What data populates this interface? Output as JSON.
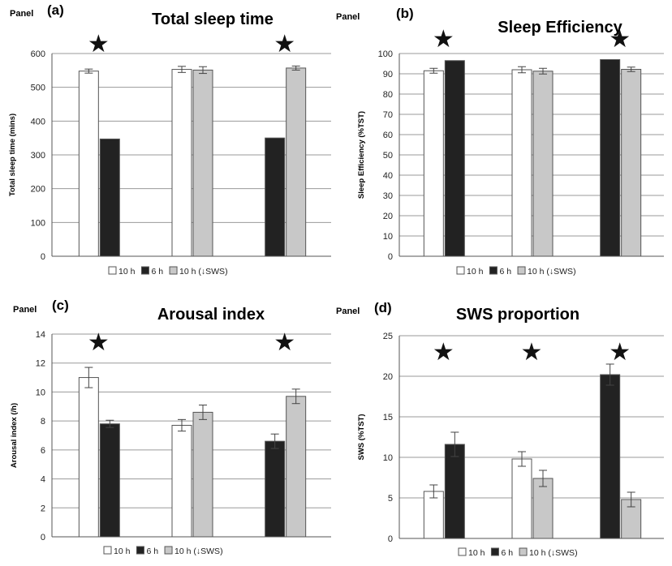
{
  "legend": [
    {
      "label": "10 h",
      "color": "#ffffff"
    },
    {
      "label": "6 h",
      "color": "#222222"
    },
    {
      "label": "10 h (↓SWS)",
      "color": "#c8c8c8"
    }
  ],
  "panel_word": "Panel",
  "star_glyph": "★",
  "colors": {
    "grid": "#9a9a9a",
    "axis": "#555555",
    "bar_stroke": "#555555",
    "errorbar": "#444444"
  },
  "chart_data": [
    {
      "type": "bar",
      "panel": "(a)",
      "title": "Total sleep time",
      "ylabel": "Total sleep time (mins)",
      "ylim": [
        0,
        600
      ],
      "yticks": [
        0,
        100,
        200,
        300,
        400,
        500,
        600
      ],
      "grid": true,
      "legend_position": "bottom",
      "groups": [
        {
          "bars": [
            {
              "series": 0,
              "value": 548,
              "error": 6
            },
            {
              "series": 1,
              "value": 347,
              "error": 0
            }
          ],
          "star": true
        },
        {
          "bars": [
            {
              "series": 0,
              "value": 553,
              "error": 9
            },
            {
              "series": 2,
              "value": 551,
              "error": 10
            }
          ],
          "star": false
        },
        {
          "bars": [
            {
              "series": 1,
              "value": 350,
              "error": 0
            },
            {
              "series": 2,
              "value": 557,
              "error": 6
            }
          ],
          "star": true
        }
      ]
    },
    {
      "type": "bar",
      "panel": "(b)",
      "title": "Sleep Efficiency",
      "ylabel": "Sleep Efficiency (%TST)",
      "ylim": [
        0,
        100
      ],
      "yticks": [
        0,
        10,
        20,
        30,
        40,
        50,
        60,
        70,
        80,
        90,
        100
      ],
      "grid": true,
      "legend_position": "bottom",
      "groups": [
        {
          "bars": [
            {
              "series": 0,
              "value": 91.5,
              "error": 1.2
            },
            {
              "series": 1,
              "value": 96.5,
              "error": 0
            }
          ],
          "star": true
        },
        {
          "bars": [
            {
              "series": 0,
              "value": 92,
              "error": 1.5
            },
            {
              "series": 2,
              "value": 91.3,
              "error": 1.4
            }
          ],
          "star": false
        },
        {
          "bars": [
            {
              "series": 1,
              "value": 97,
              "error": 0
            },
            {
              "series": 2,
              "value": 92.2,
              "error": 1.1
            }
          ],
          "star": true
        }
      ]
    },
    {
      "type": "bar",
      "panel": "(c)",
      "title": "Arousal index",
      "ylabel": "Arousal index (/h)",
      "ylim": [
        0,
        14
      ],
      "yticks": [
        0,
        2,
        4,
        6,
        8,
        10,
        12,
        14
      ],
      "grid": true,
      "legend_position": "bottom",
      "groups": [
        {
          "bars": [
            {
              "series": 0,
              "value": 11.0,
              "error": 0.7
            },
            {
              "series": 1,
              "value": 7.8,
              "error": 0.25
            }
          ],
          "star": true
        },
        {
          "bars": [
            {
              "series": 0,
              "value": 7.7,
              "error": 0.4
            },
            {
              "series": 2,
              "value": 8.6,
              "error": 0.5
            }
          ],
          "star": false
        },
        {
          "bars": [
            {
              "series": 1,
              "value": 6.6,
              "error": 0.5
            },
            {
              "series": 2,
              "value": 9.7,
              "error": 0.5
            }
          ],
          "star": true
        }
      ]
    },
    {
      "type": "bar",
      "panel": "(d)",
      "title": "SWS proportion",
      "ylabel": "SWS (%TST)",
      "ylim": [
        0,
        25
      ],
      "yticks": [
        0,
        5,
        10,
        15,
        20,
        25
      ],
      "grid": true,
      "legend_position": "bottom",
      "groups": [
        {
          "bars": [
            {
              "series": 0,
              "value": 5.8,
              "error": 0.8
            },
            {
              "series": 1,
              "value": 11.6,
              "error": 1.5
            }
          ],
          "star": true
        },
        {
          "bars": [
            {
              "series": 0,
              "value": 9.8,
              "error": 0.9
            },
            {
              "series": 2,
              "value": 7.4,
              "error": 1.0
            }
          ],
          "star": true
        },
        {
          "bars": [
            {
              "series": 1,
              "value": 20.2,
              "error": 1.3
            },
            {
              "series": 2,
              "value": 4.8,
              "error": 0.9
            }
          ],
          "star": true
        }
      ]
    }
  ]
}
